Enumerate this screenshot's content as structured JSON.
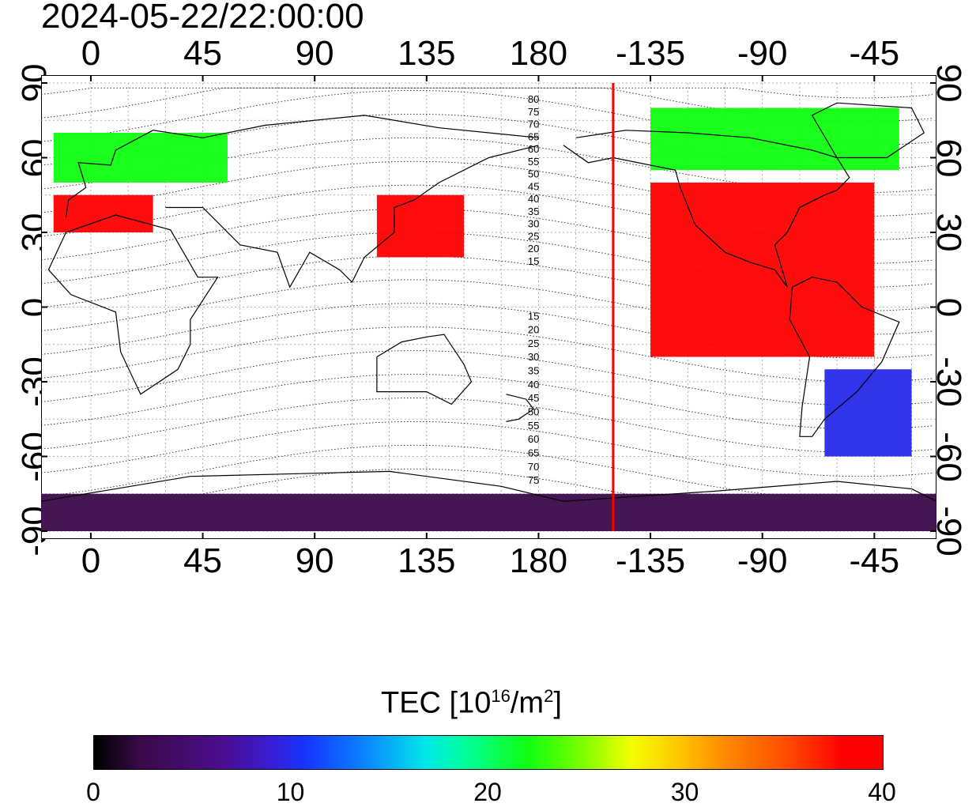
{
  "title": "2024-05-22/22:00:00",
  "axes": {
    "lon_ticks": [
      "0",
      "45",
      "90",
      "135",
      "180",
      "-135",
      "-90",
      "-45"
    ],
    "lat_ticks_left": [
      "90",
      "60",
      "30",
      "0",
      "-30",
      "-60",
      "-90"
    ],
    "lat_ticks_right": [
      "90",
      "60",
      "30",
      "0",
      "-30",
      "-60",
      "-90"
    ]
  },
  "contour_labels": {
    "north": [
      "80",
      "75",
      "70",
      "65",
      "60",
      "55",
      "50",
      "45",
      "40",
      "35",
      "30",
      "25",
      "20",
      "15"
    ],
    "south": [
      "15",
      "20",
      "25",
      "30",
      "35",
      "40",
      "45",
      "50",
      "55",
      "60",
      "65",
      "70",
      "75"
    ]
  },
  "colorbar": {
    "title_prefix": "TEC  [10",
    "title_exp1": "16",
    "title_mid": "/m",
    "title_exp2": "2",
    "title_suffix": "]",
    "ticks": [
      "0",
      "10",
      "20",
      "30",
      "40"
    ],
    "range": [
      0,
      40
    ]
  },
  "colors": {
    "terminator_line": "#ff0000",
    "high_tec": "#ff1a00",
    "low_tec": "#3b0f6b"
  },
  "chart_data": {
    "type": "heatmap",
    "title": "2024-05-22/22:00:00",
    "x_range": [
      -20,
      340
    ],
    "y_range": [
      -90,
      90
    ],
    "value_range": [
      0,
      40
    ],
    "regions": [
      {
        "lon_min": -15,
        "lon_max": 55,
        "lat_min": 50,
        "lat_max": 70,
        "tec": 22
      },
      {
        "lon_min": -15,
        "lon_max": 25,
        "lat_min": 30,
        "lat_max": 45,
        "tec": 38
      },
      {
        "lon_min": 115,
        "lon_max": 150,
        "lat_min": 20,
        "lat_max": 45,
        "tec": 40
      },
      {
        "lon_min": 225,
        "lon_max": 315,
        "lat_min": -20,
        "lat_max": 50,
        "tec": 40
      },
      {
        "lon_min": 225,
        "lon_max": 325,
        "lat_min": 55,
        "lat_max": 80,
        "tec": 22
      },
      {
        "lon_min": 295,
        "lon_max": 330,
        "lat_min": -60,
        "lat_max": -25,
        "tec": 10
      },
      {
        "lon_min": -20,
        "lon_max": 340,
        "lat_min": -90,
        "lat_max": -75,
        "tec": 3
      }
    ],
    "terminator_lon": -150
  }
}
